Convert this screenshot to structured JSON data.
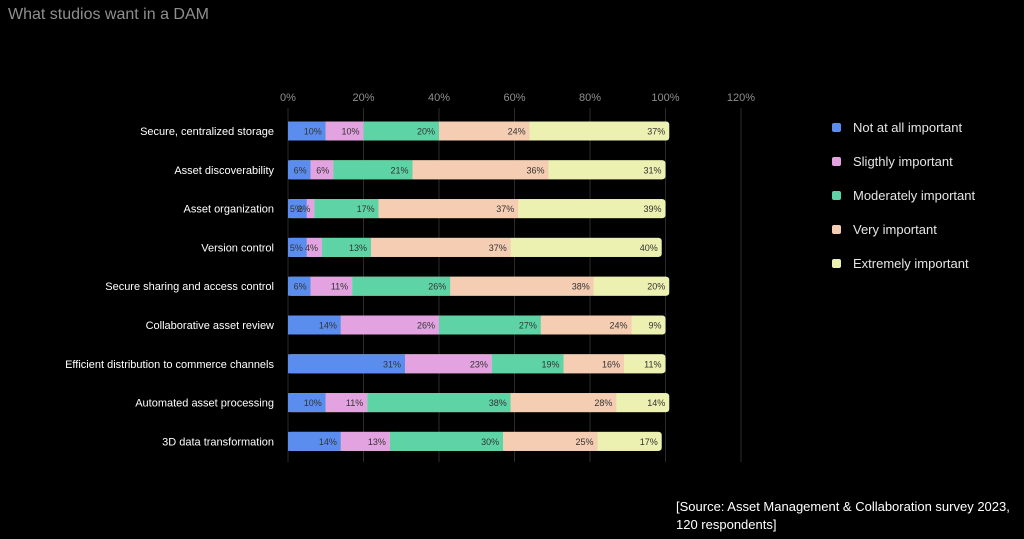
{
  "page": {
    "title": "What studios want in a DAM",
    "source": "[Source: Asset Management & Collaboration survey 2023, 120 respondents]"
  },
  "chart_data": {
    "type": "bar",
    "orientation": "horizontal",
    "stacked": true,
    "categories": [
      "Secure, centralized storage",
      "Asset discoverability",
      "Asset organization",
      "Version control",
      "Secure sharing and access control",
      "Collaborative asset review",
      "Efficient distribution to commerce channels",
      "Automated asset processing",
      "3D data transformation"
    ],
    "series": [
      {
        "name": "Not at all important",
        "color": "#5b8def",
        "values": [
          10,
          6,
          5,
          5,
          6,
          14,
          31,
          10,
          14
        ],
        "labels": [
          "10%",
          "6%",
          "5%",
          "5%",
          "6%",
          "14%",
          "31%",
          "10%",
          "14%"
        ]
      },
      {
        "name": "Sligthly important",
        "color": "#e3a3e0",
        "values": [
          10,
          6,
          2,
          4,
          11,
          26,
          23,
          11,
          13
        ],
        "labels": [
          "10%",
          "6%",
          "2%",
          "4%",
          "11%",
          "26%",
          "23%",
          "11%",
          "13%"
        ]
      },
      {
        "name": "Moderately important",
        "color": "#5ed4a6",
        "values": [
          20,
          21,
          17,
          13,
          26,
          27,
          19,
          38,
          30
        ],
        "labels": [
          "20%",
          "21%",
          "17%",
          "13%",
          "26%",
          "27%",
          "19%",
          "38%",
          "30%"
        ]
      },
      {
        "name": "Very important",
        "color": "#f5cdb3",
        "values": [
          24,
          36,
          37,
          37,
          38,
          24,
          16,
          28,
          25
        ],
        "labels": [
          "24%",
          "36%",
          "37%",
          "37%",
          "38%",
          "24%",
          "16%",
          "28%",
          "25%"
        ]
      },
      {
        "name": "Extremely important",
        "color": "#ecf0b0",
        "values": [
          37,
          31,
          39,
          40,
          20,
          9,
          11,
          14,
          17
        ],
        "labels": [
          "37%",
          "31%",
          "39%",
          "40%",
          "20%",
          "9%",
          "11%",
          "14%",
          "17%"
        ]
      }
    ],
    "xaxis": {
      "ticks": [
        0,
        20,
        40,
        60,
        80,
        100,
        120
      ],
      "tick_labels": [
        "0%",
        "20%",
        "40%",
        "60%",
        "80%",
        "100%",
        "120%"
      ],
      "range": [
        0,
        120
      ],
      "position": "top"
    },
    "grid": true,
    "legend_position": "right",
    "title": "",
    "xlabel": "",
    "ylabel": ""
  }
}
